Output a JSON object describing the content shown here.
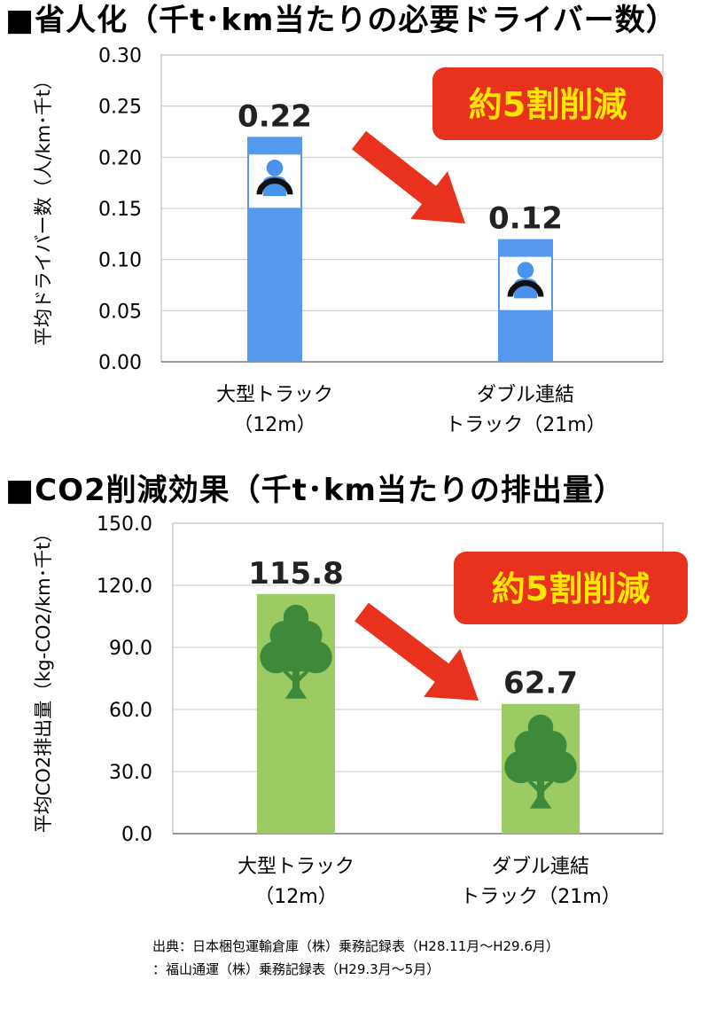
{
  "charts": {
    "top": {
      "title": "■省人化（千t･km当たりの必要ドライバー数）",
      "badge": "約5割削減"
    },
    "bottom": {
      "title": "■CO2削減効果（千t･km当たりの排出量）",
      "badge": "約5割削減"
    }
  },
  "chart_data": [
    {
      "type": "bar",
      "title": "省人化（千t･km当たりの必要ドライバー数）",
      "categories": [
        "大型トラック（12m）",
        "ダブル連結トラック（21m）"
      ],
      "category_lines": [
        [
          "大型トラック",
          "（12m）"
        ],
        [
          "ダブル連結",
          "トラック（21m）"
        ]
      ],
      "values": [
        0.22,
        0.12
      ],
      "value_labels": [
        "0.22",
        "0.12"
      ],
      "ylabel": "平均ドライバー数（人/km･千t）",
      "ylim": [
        0,
        0.3
      ],
      "yticks": [
        "0.00",
        "0.05",
        "0.10",
        "0.15",
        "0.20",
        "0.25",
        "0.30"
      ],
      "grid": true,
      "bar_color": "#5599ee",
      "bar_icon": "driver-icon",
      "annotation": "約5割削減"
    },
    {
      "type": "bar",
      "title": "CO2削減効果（千t･km当たりの排出量）",
      "categories": [
        "大型トラック（12m）",
        "ダブル連結トラック（21m）"
      ],
      "category_lines": [
        [
          "大型トラック",
          "（12m）"
        ],
        [
          "ダブル連結",
          "トラック（21m）"
        ]
      ],
      "values": [
        115.8,
        62.7
      ],
      "value_labels": [
        "115.8",
        "62.7"
      ],
      "ylabel": "平均CO2排出量（kg-CO2/km･千t）",
      "ylim": [
        0,
        150
      ],
      "yticks": [
        "0.0",
        "30.0",
        "60.0",
        "90.0",
        "120.0",
        "150.0"
      ],
      "grid": true,
      "bar_color": "#9dcb63",
      "bar_icon": "tree-icon",
      "annotation": "約5割削減"
    }
  ],
  "source": {
    "line1": "出典：日本梱包運輸倉庫（株）乗務記録表（H28.11月～H29.6月）",
    "line2": "：福山通運（株）乗務記録表（H29.3月～5月）"
  },
  "colors": {
    "badge_fill": "#e8321e",
    "badge_text": "#ffe600",
    "arrow": "#e8321e",
    "driver_body": "#4a93ea",
    "driver_wheel": "#111111",
    "tree": "#3f8a3a"
  }
}
